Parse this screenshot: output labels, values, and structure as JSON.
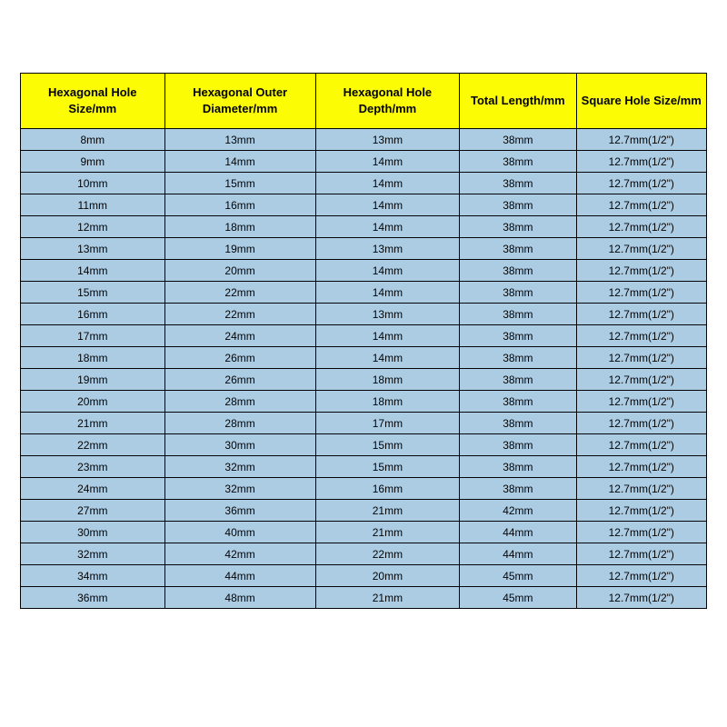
{
  "table": {
    "type": "table",
    "header_bg": "#fcfc04",
    "header_fg": "#040404",
    "cell_bg": "#accce4",
    "cell_fg": "#040404",
    "border_color": "#040404",
    "header_fontsize": 13,
    "cell_fontsize": 12,
    "col_widths_pct": [
      21,
      22,
      21,
      17,
      19
    ],
    "columns": [
      "Hexagonal Hole Size/mm",
      "Hexagonal Outer Diameter/mm",
      "Hexagonal Hole Depth/mm",
      "Total Length/mm",
      "Square Hole Size/mm"
    ],
    "rows": [
      [
        "8mm",
        "13mm",
        "13mm",
        "38mm",
        "12.7mm(1/2\")"
      ],
      [
        "9mm",
        "14mm",
        "14mm",
        "38mm",
        "12.7mm(1/2\")"
      ],
      [
        "10mm",
        "15mm",
        "14mm",
        "38mm",
        "12.7mm(1/2\")"
      ],
      [
        "11mm",
        "16mm",
        "14mm",
        "38mm",
        "12.7mm(1/2\")"
      ],
      [
        "12mm",
        "18mm",
        "14mm",
        "38mm",
        "12.7mm(1/2\")"
      ],
      [
        "13mm",
        "19mm",
        "13mm",
        "38mm",
        "12.7mm(1/2\")"
      ],
      [
        "14mm",
        "20mm",
        "14mm",
        "38mm",
        "12.7mm(1/2\")"
      ],
      [
        "15mm",
        "22mm",
        "14mm",
        "38mm",
        "12.7mm(1/2\")"
      ],
      [
        "16mm",
        "22mm",
        "13mm",
        "38mm",
        "12.7mm(1/2\")"
      ],
      [
        "17mm",
        "24mm",
        "14mm",
        "38mm",
        "12.7mm(1/2\")"
      ],
      [
        "18mm",
        "26mm",
        "14mm",
        "38mm",
        "12.7mm(1/2\")"
      ],
      [
        "19mm",
        "26mm",
        "18mm",
        "38mm",
        "12.7mm(1/2\")"
      ],
      [
        "20mm",
        "28mm",
        "18mm",
        "38mm",
        "12.7mm(1/2\")"
      ],
      [
        "21mm",
        "28mm",
        "17mm",
        "38mm",
        "12.7mm(1/2\")"
      ],
      [
        "22mm",
        "30mm",
        "15mm",
        "38mm",
        "12.7mm(1/2\")"
      ],
      [
        "23mm",
        "32mm",
        "15mm",
        "38mm",
        "12.7mm(1/2\")"
      ],
      [
        "24mm",
        "32mm",
        "16mm",
        "38mm",
        "12.7mm(1/2\")"
      ],
      [
        "27mm",
        "36mm",
        "21mm",
        "42mm",
        "12.7mm(1/2\")"
      ],
      [
        "30mm",
        "40mm",
        "21mm",
        "44mm",
        "12.7mm(1/2\")"
      ],
      [
        "32mm",
        "42mm",
        "22mm",
        "44mm",
        "12.7mm(1/2\")"
      ],
      [
        "34mm",
        "44mm",
        "20mm",
        "45mm",
        "12.7mm(1/2\")"
      ],
      [
        "36mm",
        "48mm",
        "21mm",
        "45mm",
        "12.7mm(1/2\")"
      ]
    ]
  }
}
